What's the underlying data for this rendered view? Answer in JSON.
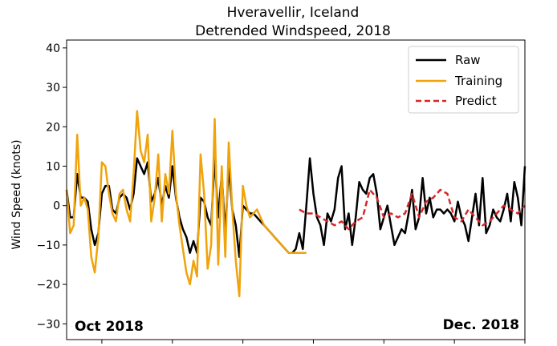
{
  "chart_data": {
    "type": "line",
    "title": "Hveravellir, Iceland",
    "subtitle": "Detrended Windspeed, 2018",
    "xlabel": "",
    "ylabel": "Wind Speed (knots)",
    "ylim": [
      -34,
      42
    ],
    "xlim": [
      0,
      65
    ],
    "yticks": [
      40,
      30,
      20,
      10,
      0,
      -10,
      -20,
      -30
    ],
    "ytick_labels": [
      "40",
      "30",
      "20",
      "10",
      "0",
      "−10",
      "−20",
      "−30"
    ],
    "xticks": [
      5,
      15,
      25,
      35,
      45,
      55,
      65
    ],
    "annotations": {
      "left": "Oct 2018",
      "right": "Dec. 2018"
    },
    "legend": {
      "position": "top-right"
    },
    "series": [
      {
        "name": "Raw",
        "color": "#000000",
        "style": "solid",
        "x": [
          0,
          0.5,
          1,
          1.5,
          2,
          2.5,
          3,
          3.5,
          4,
          4.5,
          5,
          5.5,
          6,
          6.5,
          7,
          7.5,
          8,
          8.5,
          9,
          9.5,
          10,
          10.5,
          11,
          11.5,
          12,
          12.5,
          13,
          13.5,
          14,
          14.5,
          15,
          15.5,
          16,
          16.5,
          17,
          17.5,
          18,
          18.5,
          19,
          19.5,
          20,
          20.5,
          21,
          21.5,
          22,
          22.5,
          23,
          23.5,
          24,
          24.5,
          25,
          25.5,
          26,
          26.5,
          27,
          27.5,
          28,
          28.5,
          29,
          29.5,
          30,
          30.5,
          31,
          31.5,
          32,
          32.5,
          33,
          33.5,
          34,
          34.5,
          35,
          35.5,
          36,
          36.5,
          37,
          37.5,
          38,
          38.5,
          39,
          39.5,
          40,
          40.5,
          41,
          41.5,
          42,
          42.5,
          43,
          43.5,
          44,
          44.5,
          45,
          45.5,
          46,
          46.5,
          47,
          47.5,
          48,
          48.5,
          49,
          49.5,
          50,
          50.5,
          51,
          51.5,
          52,
          52.5,
          53,
          53.5,
          54,
          54.5,
          55,
          55.5,
          56,
          56.5,
          57,
          57.5,
          58,
          58.5,
          59,
          59.5,
          60,
          60.5,
          61,
          61.5,
          62,
          62.5,
          63,
          63.5,
          64,
          64.5,
          65
        ],
        "values": [
          4,
          -3,
          -3,
          8,
          2,
          2,
          1,
          -6,
          -10,
          -7,
          3,
          5,
          5,
          -1,
          -2,
          2,
          3,
          2,
          -1,
          3,
          12,
          10,
          8,
          11,
          1,
          3,
          7,
          0,
          5,
          2,
          10,
          2,
          -3,
          -6,
          -8,
          -12,
          -9,
          -12,
          2,
          1,
          -3,
          -5,
          12,
          -3,
          8,
          -7,
          10,
          -1,
          -5,
          -13,
          0,
          -1,
          -2,
          -2,
          -3,
          -4,
          -5,
          -6,
          -7,
          -8,
          -9,
          -10,
          -11,
          -12,
          -12,
          -11,
          -7,
          -11,
          0,
          12,
          3,
          -3,
          -5,
          -10,
          -2,
          -4,
          -1,
          7,
          10,
          -6,
          -2,
          -10,
          -3,
          6,
          4,
          3,
          7,
          8,
          3,
          -6,
          -3,
          0,
          -5,
          -10,
          -8,
          -6,
          -7,
          -2,
          4,
          -6,
          -3,
          7,
          -2,
          2,
          -3,
          -1,
          -1,
          -2,
          -1,
          -2,
          -4,
          1,
          -3,
          -5,
          -9,
          -3,
          3,
          -5,
          7,
          -7,
          -5,
          -1,
          -3,
          -4,
          -1,
          3,
          -4,
          6,
          2,
          -5,
          10
        ]
      },
      {
        "name": "Training",
        "color": "#f0a30a",
        "style": "solid",
        "x": [
          0,
          0.5,
          1,
          1.5,
          2,
          2.5,
          3,
          3.5,
          4,
          4.5,
          5,
          5.5,
          6,
          6.5,
          7,
          7.5,
          8,
          8.5,
          9,
          9.5,
          10,
          10.5,
          11,
          11.5,
          12,
          12.5,
          13,
          13.5,
          14,
          14.5,
          15,
          15.5,
          16,
          16.5,
          17,
          17.5,
          18,
          18.5,
          19,
          19.5,
          20,
          20.5,
          21,
          21.5,
          22,
          22.5,
          23,
          23.5,
          24,
          24.5,
          25,
          25.5,
          26,
          26.5,
          27,
          27.5,
          28,
          28.5,
          29,
          29.5,
          30,
          30.5,
          31,
          31.5,
          32,
          32.5,
          33,
          33.5,
          34
        ],
        "values": [
          4,
          -7,
          -5,
          18,
          0,
          2,
          -1,
          -13,
          -17,
          -8,
          11,
          10,
          3,
          -2,
          -4,
          3,
          4,
          -1,
          -4,
          8,
          24,
          14,
          11,
          18,
          -4,
          2,
          13,
          -4,
          8,
          3,
          19,
          3,
          -5,
          -11,
          -17,
          -20,
          -14,
          -18,
          13,
          3,
          -16,
          -10,
          22,
          -15,
          10,
          -13,
          16,
          -1,
          -14,
          -23,
          5,
          0,
          -3,
          -2,
          -1,
          -3,
          -5,
          -6,
          -7,
          -8,
          -9,
          -10,
          -11,
          -12,
          -12,
          -12,
          -12,
          -12,
          -12
        ]
      },
      {
        "name": "Predict",
        "color": "#d62728",
        "style": "dashed",
        "x": [
          33,
          34,
          35,
          36,
          37,
          38,
          39,
          40,
          41,
          42,
          43,
          44,
          45,
          46,
          47,
          48,
          49,
          50,
          51,
          52,
          53,
          54,
          55,
          56,
          57,
          58,
          59,
          60,
          61,
          62,
          63,
          64,
          65
        ],
        "values": [
          -1,
          -2,
          -2,
          -3,
          -4,
          -5,
          -4,
          -6,
          -4,
          -3,
          4,
          2,
          -3,
          -2,
          -3,
          -2,
          3,
          -3,
          1,
          2,
          4,
          3,
          -3,
          -4,
          -1,
          -3,
          -5,
          -4,
          -2,
          0,
          -1,
          -2,
          0
        ]
      }
    ]
  }
}
